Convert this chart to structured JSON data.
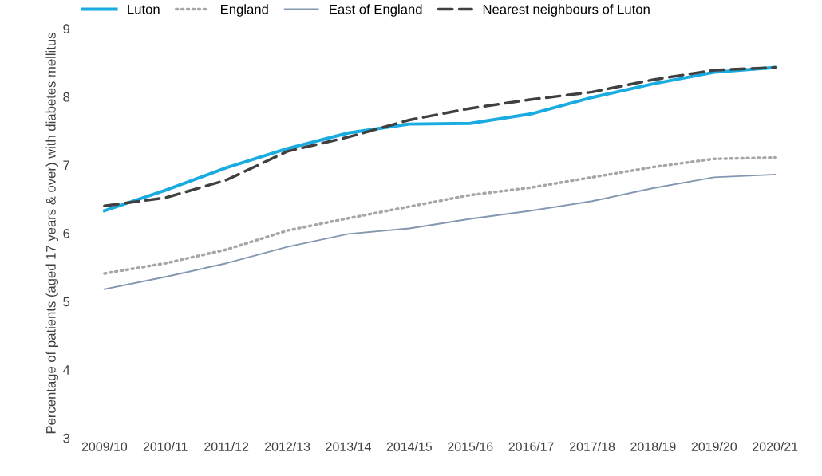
{
  "chart_data": {
    "type": "line",
    "ylabel": "Percentage of patients (aged 17 years & over) with diabetes mellitus",
    "categories": [
      "2009/10",
      "2010/11",
      "2011/12",
      "2012/13",
      "2013/14",
      "2014/15",
      "2015/16",
      "2016/17",
      "2017/18",
      "2018/19",
      "2019/20",
      "2020/21"
    ],
    "series": [
      {
        "name": "Luton",
        "color": "#1aabe0",
        "line_style": "solid",
        "values": [
          6.33,
          6.63,
          6.96,
          7.24,
          7.47,
          7.6,
          7.61,
          7.75,
          7.99,
          8.19,
          8.36,
          8.43
        ]
      },
      {
        "name": "England",
        "color": "#a6a6a6",
        "line_style": "dotted",
        "values": [
          5.41,
          5.56,
          5.76,
          6.04,
          6.22,
          6.39,
          6.56,
          6.67,
          6.82,
          6.97,
          7.09,
          7.11
        ]
      },
      {
        "name": "East of England",
        "color": "#8497b0",
        "line_style": "solid",
        "values": [
          5.18,
          5.36,
          5.56,
          5.8,
          5.99,
          6.07,
          6.21,
          6.33,
          6.47,
          6.66,
          6.82,
          6.86
        ]
      },
      {
        "name": "Nearest neighbours of Luton",
        "color": "#404040",
        "line_style": "dashed",
        "values": [
          6.4,
          6.52,
          6.78,
          7.2,
          7.41,
          7.66,
          7.83,
          7.96,
          8.07,
          8.25,
          8.39,
          8.43
        ]
      }
    ],
    "ylim": [
      3,
      9
    ],
    "yticks": [
      3,
      4,
      5,
      6,
      7,
      8,
      9
    ],
    "grid": false,
    "legend": "top",
    "marker": "none"
  }
}
